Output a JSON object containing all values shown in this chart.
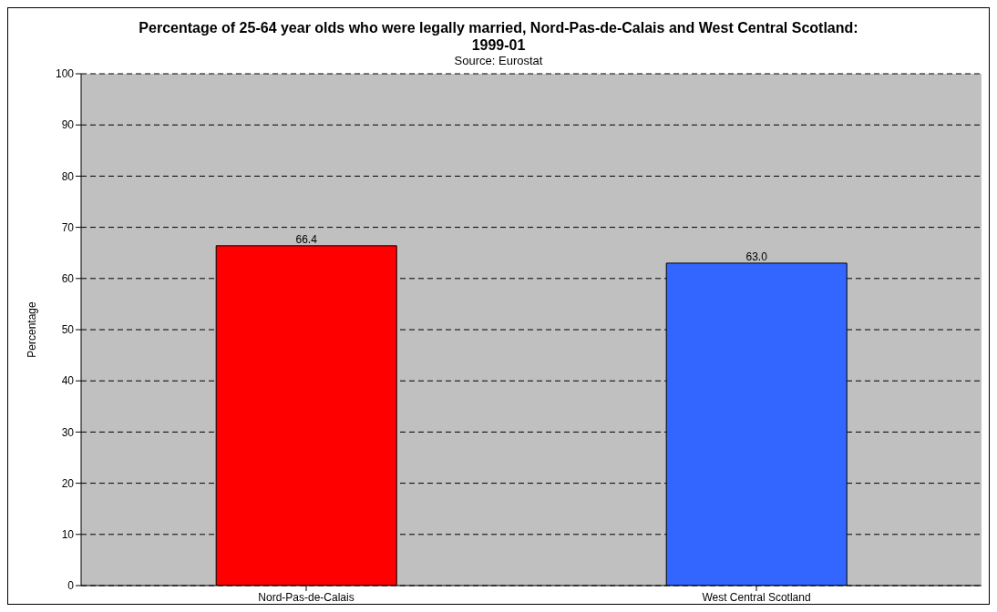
{
  "chart_data": {
    "type": "bar",
    "title": "Percentage of 25-64 year olds who were legally married, Nord-Pas-de-Calais and West Central Scotland: 1999-01",
    "annotations": [
      "Source: Eurostat"
    ],
    "ylabel": "Percentage",
    "categories": [
      "Nord-Pas-de-Calais",
      "West Central Scotland"
    ],
    "values": [
      66.4,
      63.0
    ],
    "colors": [
      "#ff0000",
      "#3366ff"
    ],
    "value_labels": [
      "66.4",
      "63.0"
    ],
    "ylim": [
      0,
      100
    ],
    "yticks": [
      0,
      10,
      20,
      30,
      40,
      50,
      60,
      70,
      80,
      90,
      100
    ],
    "grid": "y",
    "legend": false
  }
}
